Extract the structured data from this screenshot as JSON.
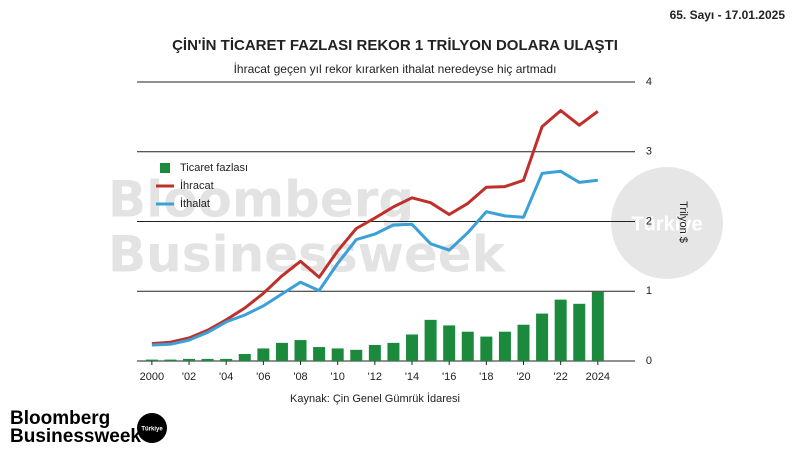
{
  "issue": "65. Sayı - 17.01.2025",
  "watermark": {
    "lines": [
      "Bloomberg",
      "Businessweek"
    ],
    "badge": "Türkiye"
  },
  "logo": {
    "lines": [
      "Bloomberg",
      "Businessweek"
    ],
    "badge": "Türkiye"
  },
  "chart_data": {
    "type": "bar",
    "title": "ÇİN'İN TİCARET FAZLASI REKOR 1 TRİLYON DOLARA ULAŞTI",
    "subtitle": "İhracat geçen yıl rekor kırarken ithalat neredeyse hiç artmadı",
    "y_label": "Trilyon $",
    "source": "Kaynak: Çin Genel Gümrük İdaresi",
    "x": [
      2000,
      2001,
      2002,
      2003,
      2004,
      2005,
      2006,
      2007,
      2008,
      2009,
      2010,
      2011,
      2012,
      2013,
      2014,
      2015,
      2016,
      2017,
      2018,
      2019,
      2020,
      2021,
      2022,
      2023,
      2024
    ],
    "series": [
      {
        "name": "Ticaret fazlası",
        "type": "bar",
        "color": "#1b8a3c",
        "values": [
          0.02,
          0.02,
          0.03,
          0.03,
          0.03,
          0.1,
          0.18,
          0.26,
          0.3,
          0.2,
          0.18,
          0.16,
          0.23,
          0.26,
          0.38,
          0.59,
          0.51,
          0.42,
          0.35,
          0.42,
          0.52,
          0.68,
          0.88,
          0.82,
          0.99
        ]
      },
      {
        "name": "İhracat",
        "type": "line",
        "color": "#c0302b",
        "values": [
          0.25,
          0.27,
          0.33,
          0.44,
          0.59,
          0.76,
          0.97,
          1.22,
          1.43,
          1.2,
          1.58,
          1.9,
          2.05,
          2.21,
          2.34,
          2.27,
          2.1,
          2.26,
          2.49,
          2.5,
          2.59,
          3.36,
          3.59,
          3.38,
          3.58
        ]
      },
      {
        "name": "İthalat",
        "type": "line",
        "color": "#3aa0d8",
        "values": [
          0.23,
          0.24,
          0.3,
          0.41,
          0.56,
          0.66,
          0.79,
          0.96,
          1.13,
          1.01,
          1.4,
          1.74,
          1.82,
          1.95,
          1.96,
          1.68,
          1.59,
          1.84,
          2.14,
          2.08,
          2.06,
          2.69,
          2.72,
          2.56,
          2.59
        ]
      }
    ],
    "xlim": [
      1999.2,
      2026
    ],
    "xticks": [
      2000,
      {
        "value": 2002,
        "label": "'02"
      },
      {
        "value": 2004,
        "label": "'04"
      },
      {
        "value": 2006,
        "label": "'06"
      },
      {
        "value": 2008,
        "label": "'08"
      },
      {
        "value": 2010,
        "label": "'10"
      },
      {
        "value": 2012,
        "label": "'12"
      },
      {
        "value": 2014,
        "label": "'14"
      },
      {
        "value": 2016,
        "label": "'16"
      },
      {
        "value": 2018,
        "label": "'18"
      },
      {
        "value": 2020,
        "label": "'20"
      },
      {
        "value": 2022,
        "label": "'22"
      },
      2024
    ],
    "ylim": [
      0,
      4
    ],
    "yticks": [
      0,
      1,
      2,
      3,
      4
    ],
    "grid": true,
    "legend": "upper left"
  }
}
